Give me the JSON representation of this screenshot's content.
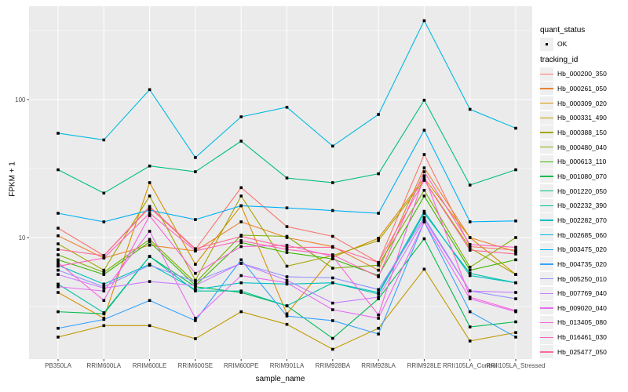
{
  "chart_data": {
    "type": "line",
    "title": "",
    "xlabel": "sample_name",
    "ylabel": "FPKM + 1",
    "yscale": "log10",
    "ylim": [
      1.35,
      480
    ],
    "grid": true,
    "legend_position": "right",
    "panel_bg": "#EBEBEB",
    "grid_color": "#FFFFFF",
    "tick_label_color": "#4D4D4D",
    "point_color": "#000000",
    "y_tick_labels": [
      "100",
      "10"
    ],
    "y_tick_values": [
      100,
      10
    ],
    "y_minor_gridline_values": [
      3.162,
      31.62,
      316.2
    ],
    "x_categories": [
      "PB350LA",
      "RRIM600LA",
      "RRIM600LE",
      "RRIM600SE",
      "RRIM600PE",
      "RRIM901LA",
      "RRIM928BA",
      "RRIM928LA",
      "RRIM928LE",
      "RRII105LA_Control",
      "RRII105LA_Stressed"
    ],
    "legend_quant": {
      "title": "quant_status",
      "entries": [
        {
          "label": "OK",
          "marker": "black-square-point"
        }
      ]
    },
    "legend_tracking_title": "tracking_id",
    "series": [
      {
        "name": "Hb_000200_350",
        "color": "#F8766D",
        "values": [
          11.7,
          7.4,
          16.5,
          8.2,
          23,
          12,
          10.2,
          6.6,
          40,
          8.6,
          8.1
        ]
      },
      {
        "name": "Hb_000261_050",
        "color": "#EA8331",
        "values": [
          10.3,
          7.1,
          8.8,
          8.0,
          13,
          10,
          8.6,
          5.8,
          32,
          10,
          7.9
        ]
      },
      {
        "name": "Hb_000309_020",
        "color": "#D89000",
        "values": [
          4.0,
          2.6,
          25,
          6.4,
          17,
          2.8,
          7.2,
          9.9,
          27,
          10,
          5.4
        ]
      },
      {
        "name": "Hb_000331_490",
        "color": "#C09B00",
        "values": [
          1.9,
          2.3,
          2.3,
          1.85,
          2.9,
          2.35,
          1.55,
          2.2,
          5.9,
          1.78,
          2.05
        ]
      },
      {
        "name": "Hb_000388_150",
        "color": "#A3A500",
        "values": [
          9.0,
          5.8,
          20,
          4.9,
          20,
          6.2,
          7.4,
          9.5,
          26,
          8.4,
          5.4
        ]
      },
      {
        "name": "Hb_000480_040",
        "color": "#7CAE00",
        "values": [
          7.5,
          5.6,
          9.7,
          4.7,
          10.4,
          10.2,
          6.0,
          6.3,
          22,
          6.1,
          10.0
        ]
      },
      {
        "name": "Hb_000613_110",
        "color": "#39B600",
        "values": [
          6.9,
          5.4,
          9.3,
          4.5,
          9.2,
          7.8,
          7.0,
          5.3,
          20,
          5.8,
          6.9
        ]
      },
      {
        "name": "Hb_001080_070",
        "color": "#00BB4E",
        "values": [
          2.9,
          2.8,
          7.3,
          4.4,
          4.0,
          3.2,
          1.86,
          3.6,
          9.8,
          2.25,
          2.45
        ]
      },
      {
        "name": "Hb_001220_050",
        "color": "#00BF7D",
        "values": [
          31,
          21,
          33,
          30,
          50,
          27,
          25,
          29,
          99,
          24,
          31
        ]
      },
      {
        "name": "Hb_002232_390",
        "color": "#00C1A3",
        "values": [
          4.6,
          2.85,
          7.3,
          4.1,
          4.1,
          3.2,
          4.7,
          3.9,
          15,
          5.5,
          4.7
        ]
      },
      {
        "name": "Hb_002282_070",
        "color": "#00BFC4",
        "values": [
          6.3,
          4.6,
          6.4,
          4.2,
          4.7,
          4.6,
          4.7,
          4.0,
          15.5,
          5.3,
          4.7
        ]
      },
      {
        "name": "Hb_002685_060",
        "color": "#00BAE0",
        "values": [
          57,
          51,
          118,
          38,
          75,
          88,
          46,
          78,
          373,
          85,
          62
        ]
      },
      {
        "name": "Hb_003475_020",
        "color": "#00B0F6",
        "values": [
          15,
          13,
          15.8,
          13.5,
          17,
          16.4,
          15.7,
          15,
          60,
          13,
          13.2
        ]
      },
      {
        "name": "Hb_004735_020",
        "color": "#35A2FF",
        "values": [
          2.2,
          2.55,
          3.5,
          2.5,
          6.9,
          2.7,
          2.5,
          2.0,
          13,
          2.9,
          1.9
        ]
      },
      {
        "name": "Hb_005250_010",
        "color": "#9590FF",
        "values": [
          5.8,
          4.4,
          6.3,
          4.8,
          6.5,
          5.2,
          5.1,
          4.2,
          14,
          4.1,
          3.6
        ]
      },
      {
        "name": "Hb_007769_040",
        "color": "#C77CFF",
        "values": [
          5.4,
          4.3,
          4.8,
          4.5,
          6.5,
          4.9,
          3.35,
          3.7,
          13.5,
          4.1,
          4.0
        ]
      },
      {
        "name": "Hb_009020_040",
        "color": "#E76BF3",
        "values": [
          4.4,
          4.1,
          11.1,
          2.6,
          5.3,
          4.7,
          3.0,
          2.6,
          13,
          3.6,
          2.9
        ]
      },
      {
        "name": "Hb_013405_080",
        "color": "#FA62DB",
        "values": [
          6.6,
          3.5,
          14.4,
          5.5,
          8.6,
          8.8,
          7.3,
          2.75,
          28,
          3.7,
          2.95
        ]
      },
      {
        "name": "Hb_016461_030",
        "color": "#FF62BC",
        "values": [
          6.2,
          7.1,
          15,
          8.0,
          9.5,
          8.2,
          7.5,
          5.2,
          30,
          8.9,
          8.5
        ]
      },
      {
        "name": "Hb_025477_050",
        "color": "#FF6A98",
        "values": [
          8.2,
          7.4,
          16.8,
          8.3,
          10.2,
          8.5,
          8.5,
          6.6,
          26,
          8.1,
          7.6
        ]
      }
    ]
  }
}
